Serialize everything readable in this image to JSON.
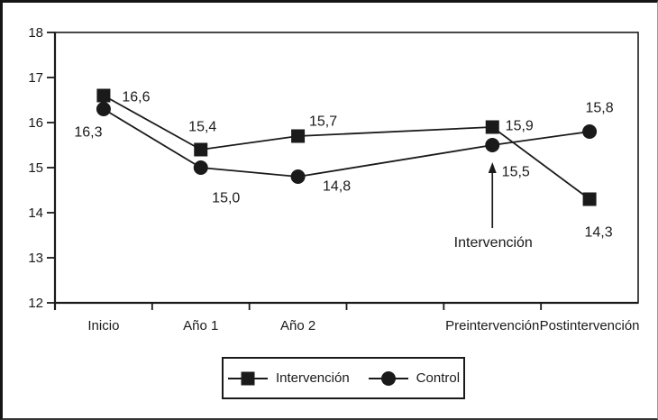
{
  "figure": {
    "background": "#ffffff",
    "ink_color": "#1a1a1a"
  },
  "chart_data": {
    "type": "line",
    "title": "",
    "xlabel": "",
    "ylabel": "",
    "grid": false,
    "x_slots": 6,
    "ylim": [
      12,
      18
    ],
    "yticks": [
      "12",
      "13",
      "14",
      "15",
      "16",
      "17",
      "18"
    ],
    "categories": [
      {
        "label": "Inicio",
        "slot": 0
      },
      {
        "label": "Año 1",
        "slot": 1
      },
      {
        "label": "Año 2",
        "slot": 2
      },
      {
        "label": "Preintervención",
        "slot": 4
      },
      {
        "label": "Postintervención",
        "slot": 5
      }
    ],
    "series": [
      {
        "name": "Intervención",
        "marker": "square",
        "color": "#1a1a1a",
        "slots": [
          0,
          1,
          2,
          4,
          5
        ],
        "values": [
          16.6,
          15.4,
          15.7,
          15.9,
          14.3
        ],
        "point_labels": [
          "16,6",
          "15,4",
          "15,7",
          "15,9",
          "14,3"
        ],
        "label_offsets": [
          [
            36,
            1
          ],
          [
            2,
            -26
          ],
          [
            28,
            -17
          ],
          [
            30,
            -2
          ],
          [
            10,
            36
          ]
        ]
      },
      {
        "name": "Control",
        "marker": "circle",
        "color": "#1a1a1a",
        "slots": [
          0,
          1,
          2,
          4,
          5
        ],
        "values": [
          16.3,
          15.0,
          14.8,
          15.5,
          15.8
        ],
        "point_labels": [
          "16,3",
          "15,0",
          "14,8",
          "15,5",
          "15,8"
        ],
        "label_offsets": [
          [
            -17,
            25
          ],
          [
            28,
            33
          ],
          [
            43,
            10
          ],
          [
            26,
            29
          ],
          [
            11,
            -27
          ]
        ]
      }
    ],
    "annotation": {
      "text": "Intervención",
      "slot": 4,
      "series": "Control"
    },
    "legend": {
      "position": "bottom-center",
      "items": [
        "Intervención",
        "Control"
      ]
    }
  }
}
